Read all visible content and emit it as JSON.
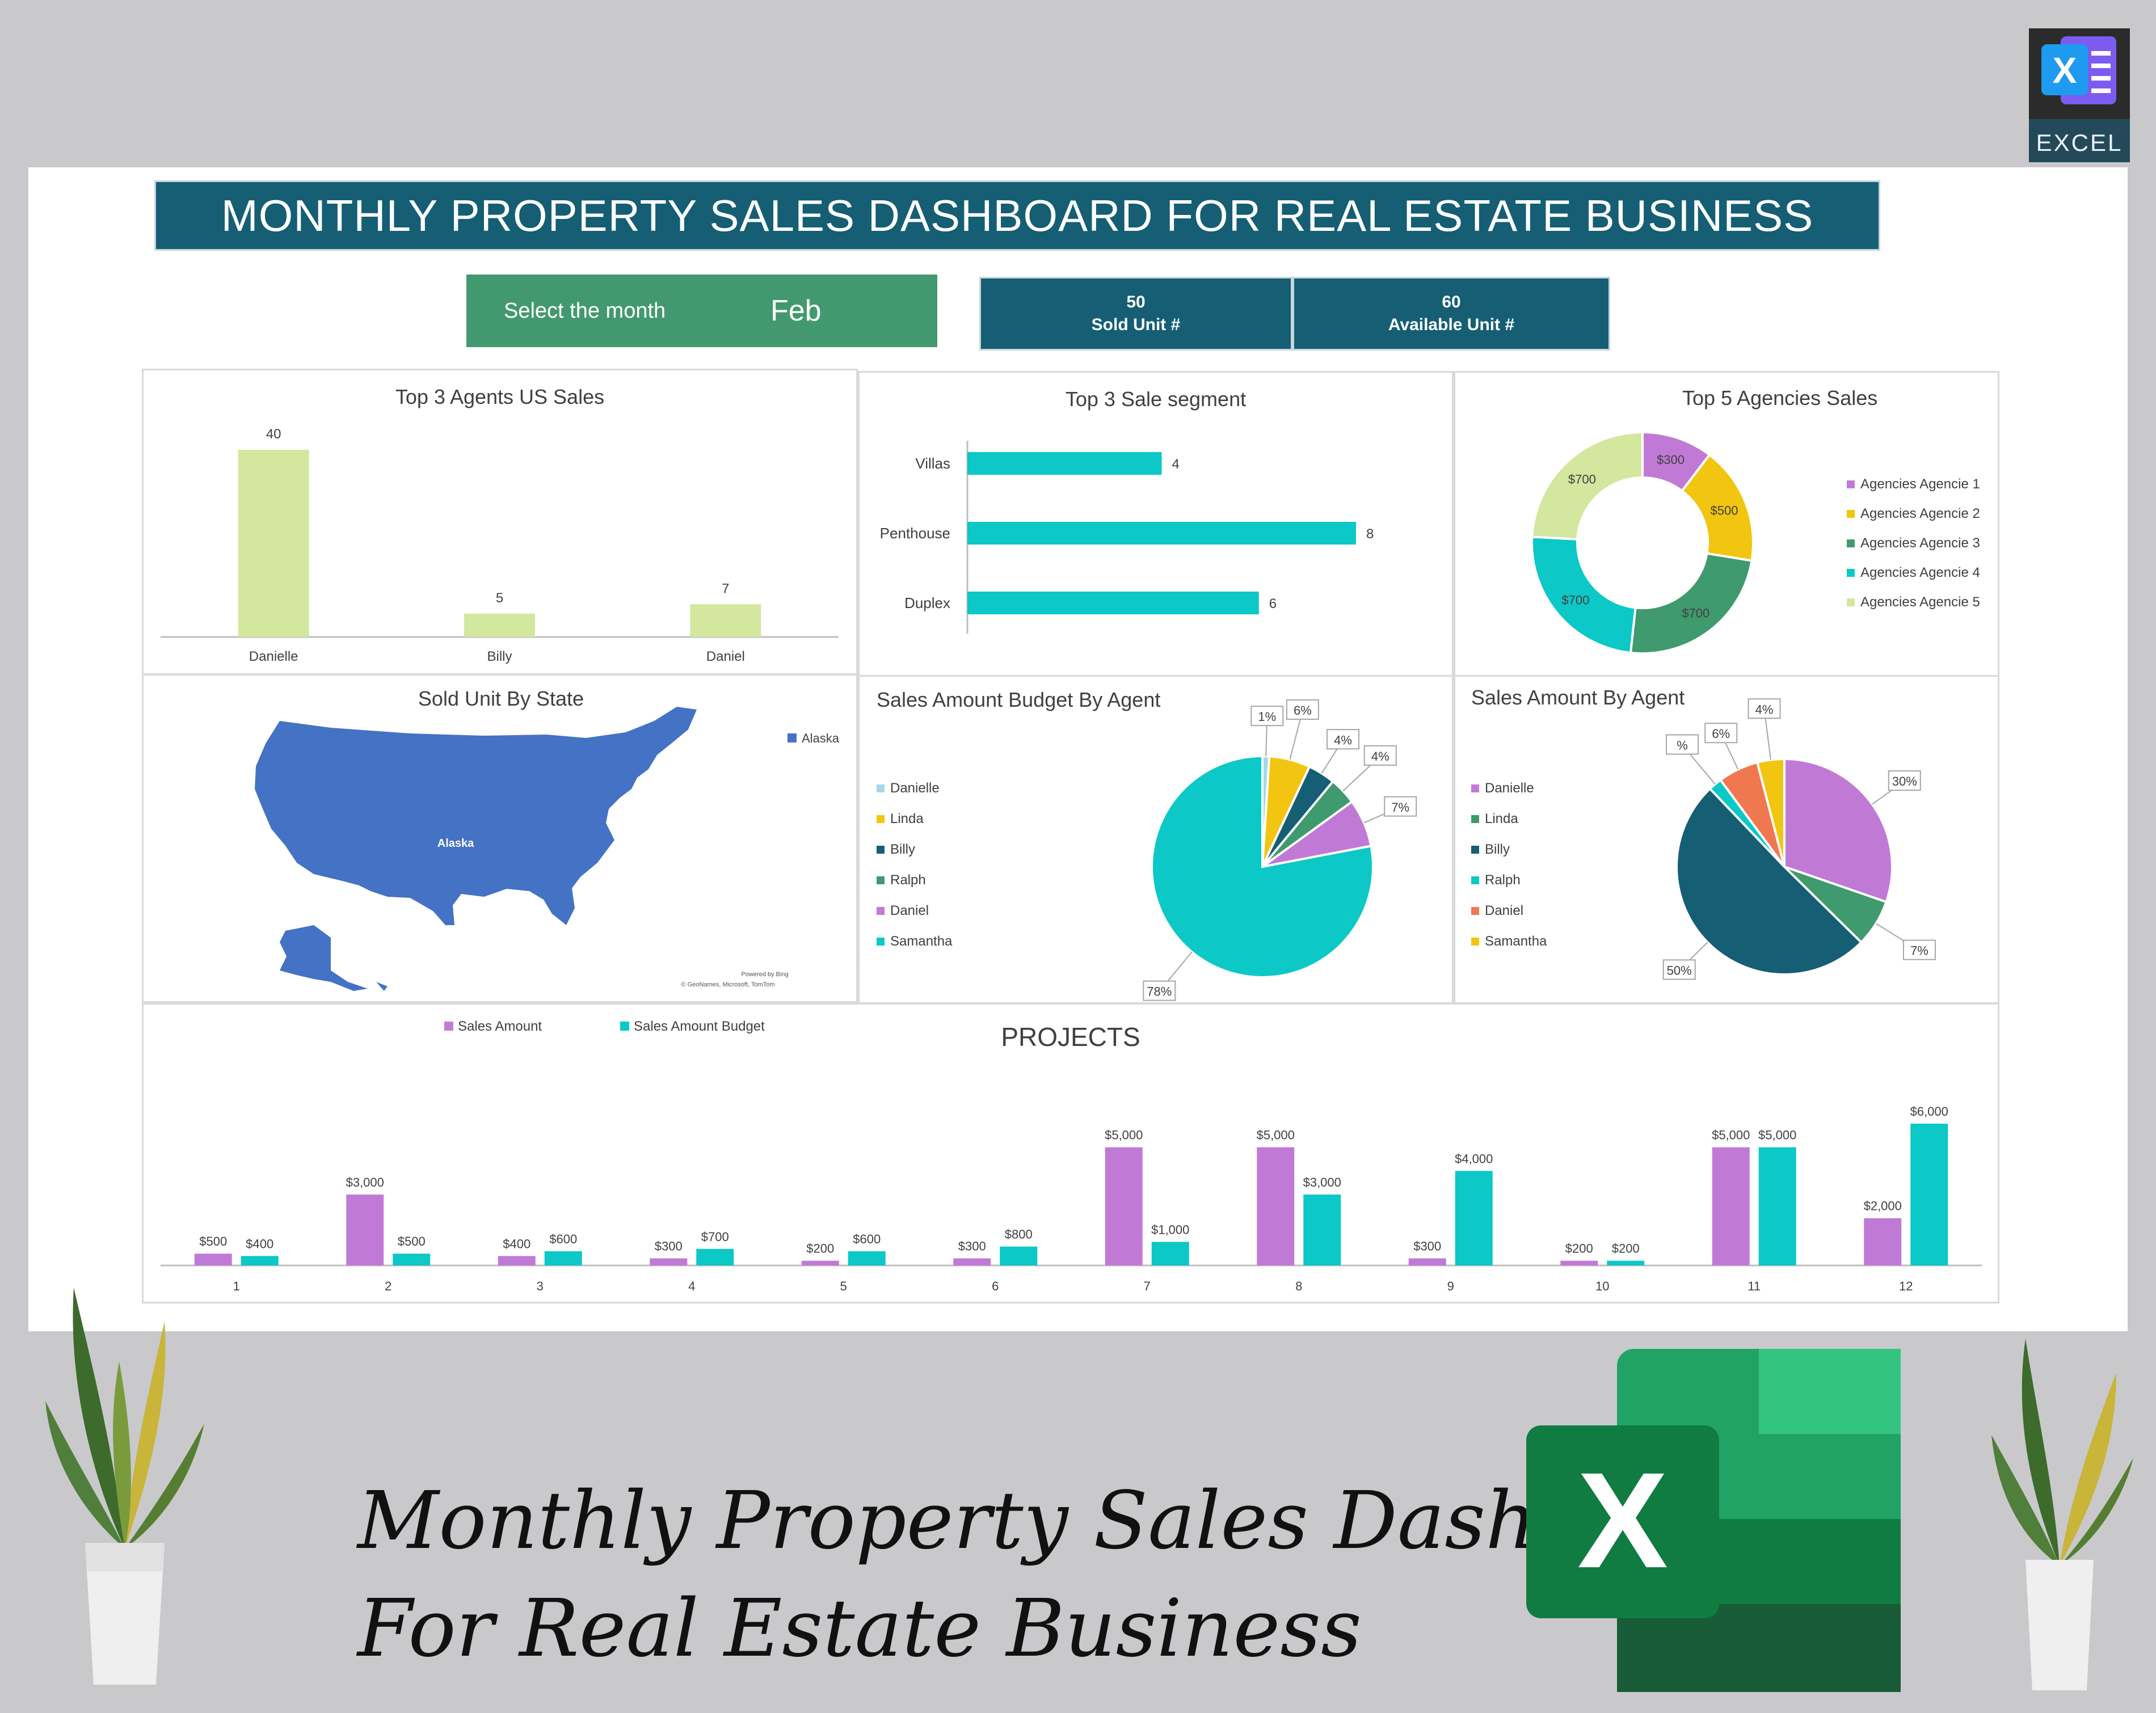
{
  "header": {
    "title": "MONTHLY PROPERTY SALES DASHBOARD FOR REAL ESTATE BUSINESS",
    "month_label": "Select the month",
    "month_value": "Feb",
    "kpis": [
      {
        "value": "50",
        "label": "Sold Unit #"
      },
      {
        "value": "60",
        "label": "Available Unit #"
      }
    ]
  },
  "badge": {
    "label": "EXCEL",
    "letter": "X",
    "icon": "excel-book-icon"
  },
  "caption": {
    "line1": "Monthly Property Sales Dashboard",
    "line2": "For Real Estate Business",
    "logo_letter": "X"
  },
  "colors": {
    "banner": "#155e74",
    "month_box": "#43996f",
    "teal": "#0cc8c6",
    "purple": "#c07ad6",
    "light_green": "#d3e79e",
    "map_blue": "#4472c4",
    "excel_green": "#107c41"
  },
  "panels": {
    "top_agents": "Top 3 Agents US Sales",
    "segment": "Top 3 Sale segment",
    "agencies": "Top 5 Agencies Sales",
    "state": "Sold Unit By State",
    "budget_agent": "Sales Amount Budget By Agent",
    "amount_agent": "Sales Amount By Agent",
    "projects": "PROJECTS"
  },
  "map": {
    "legend": "Alaska",
    "region_label": "Alaska",
    "credit1": "Powered by Bing",
    "credit2": "© GeoNames, Microsoft, TomTom"
  },
  "chart_data": [
    {
      "id": "top_agents",
      "type": "bar",
      "title": "Top 3 Agents US Sales",
      "categories": [
        "Danielle",
        "Billy",
        "Daniel"
      ],
      "values": [
        40,
        5,
        7
      ],
      "ylim": [
        0,
        40
      ],
      "color": "#d3e79e"
    },
    {
      "id": "segment",
      "type": "bar",
      "orientation": "horizontal",
      "title": "Top 3 Sale segment",
      "categories": [
        "Villas",
        "Penthouse",
        "Duplex"
      ],
      "values": [
        4,
        8,
        6
      ],
      "xlim": [
        0,
        8
      ],
      "color": "#0cc8c6"
    },
    {
      "id": "agencies",
      "type": "pie",
      "donut": true,
      "title": "Top 5 Agencies Sales",
      "labels": [
        "Agencies Agencie 1",
        "Agencies Agencie 2",
        "Agencies Agencie 3",
        "Agencies Agencie 4",
        "Agencies Agencie 5"
      ],
      "values": [
        300,
        500,
        700,
        700,
        700
      ],
      "value_labels": [
        "$300",
        "$500",
        "$700",
        "$700",
        "$700"
      ],
      "colors": [
        "#c07ad6",
        "#f2c511",
        "#3f9a6e",
        "#0cc8c6",
        "#d3e79e"
      ],
      "legend": "right"
    },
    {
      "id": "budget_agent",
      "type": "pie",
      "title": "Sales Amount Budget By Agent",
      "labels": [
        "Danielle",
        "Linda",
        "Billy",
        "Ralph",
        "Daniel",
        "Samantha"
      ],
      "values": [
        1,
        6,
        4,
        4,
        7,
        78
      ],
      "value_labels": [
        "1%",
        "6%",
        "4%",
        "4%",
        "7%",
        "78%"
      ],
      "colors": [
        "#a6d8e6",
        "#f2c511",
        "#155e74",
        "#3f9a6e",
        "#c07ad6",
        "#0cc8c6"
      ],
      "legend": "left"
    },
    {
      "id": "amount_agent",
      "type": "pie",
      "title": "Sales Amount By Agent",
      "labels": [
        "Danielle",
        "Linda",
        "Billy",
        "Ralph",
        "Daniel",
        "Samantha"
      ],
      "values": [
        30,
        7,
        50,
        2,
        6,
        4
      ],
      "value_labels": [
        "30%",
        "7%",
        "50%",
        "%",
        "6%",
        "4%"
      ],
      "colors": [
        "#c07ad6",
        "#3f9a6e",
        "#155e74",
        "#0cc8c6",
        "#f07850",
        "#f2c511"
      ],
      "legend": "left"
    },
    {
      "id": "projects",
      "type": "bar",
      "title": "PROJECTS",
      "categories": [
        "1",
        "2",
        "3",
        "4",
        "5",
        "6",
        "7",
        "8",
        "9",
        "10",
        "11",
        "12"
      ],
      "series": [
        {
          "name": "Sales Amount",
          "values": [
            500,
            3000,
            400,
            300,
            200,
            300,
            5000,
            5000,
            300,
            200,
            5000,
            2000
          ],
          "labels": [
            "$500",
            "$3,000",
            "$400",
            "$300",
            "$200",
            "$300",
            "$5,000",
            "$5,000",
            "$300",
            "$200",
            "$5,000",
            "$2,000"
          ],
          "color": "#c07ad6"
        },
        {
          "name": "Sales Amount Budget",
          "values": [
            400,
            500,
            600,
            700,
            600,
            800,
            1000,
            3000,
            4000,
            200,
            5000,
            6000
          ],
          "labels": [
            "$400",
            "$500",
            "$600",
            "$700",
            "$600",
            "$800",
            "$1,000",
            "$3,000",
            "$4,000",
            "$200",
            "$5,000",
            "$6,000"
          ],
          "color": "#0cc8c6"
        }
      ],
      "legend": "top-left"
    }
  ]
}
